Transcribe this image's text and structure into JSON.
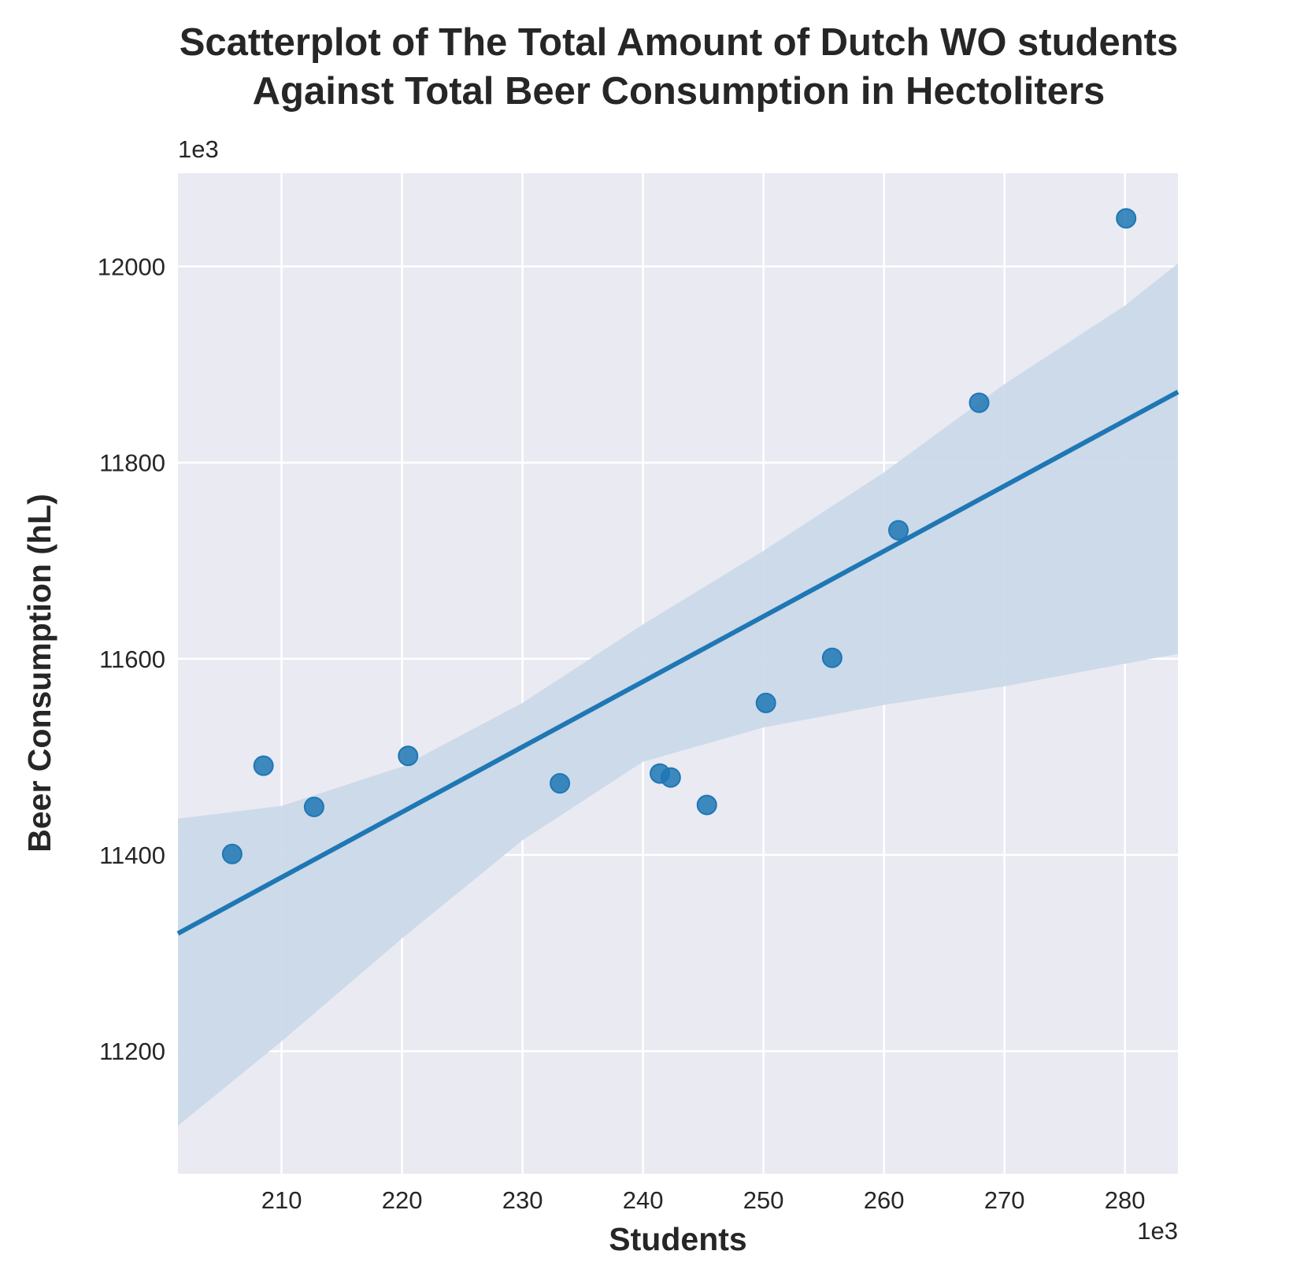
{
  "chart_data": {
    "type": "scatter",
    "title_lines": [
      "Scatterplot of The Total Amount of Dutch WO students",
      "Against Total Beer Consumption in Hectoliters"
    ],
    "xlabel": "Students",
    "ylabel": "Beer Consumption (hL)",
    "x_offset_text": "1e3",
    "y_offset_text": "1e3",
    "xlim": [
      201.4,
      284.4
    ],
    "ylim": [
      11075,
      12095
    ],
    "x_ticks": [
      210,
      220,
      230,
      240,
      250,
      260,
      270,
      280
    ],
    "y_ticks": [
      11200,
      11400,
      11600,
      11800,
      12000
    ],
    "grid": true,
    "colors": {
      "background": "#eaeaf2",
      "points": "#1f77b4",
      "line": "#1f77b4",
      "band": "#c9d8e8"
    },
    "series": [
      {
        "x": [
          205.9,
          208.5,
          212.7,
          220.5,
          233.1,
          241.4,
          242.3,
          245.3,
          250.2,
          255.7,
          261.2,
          267.9,
          280.1
        ],
        "y": [
          11401,
          11491,
          11449,
          11501,
          11473,
          11483,
          11479,
          11451,
          11555,
          11601,
          11731,
          11861,
          12049
        ]
      }
    ],
    "regression": {
      "x": [
        201.4,
        284.4
      ],
      "y": [
        11320,
        11872
      ]
    },
    "confidence_band": {
      "x": [
        201.4,
        210,
        220,
        230,
        240,
        250,
        260,
        270,
        280,
        284.4
      ],
      "upper": [
        11437,
        11450,
        11490,
        11555,
        11635,
        11710,
        11790,
        11880,
        11960,
        12003
      ],
      "lower": [
        11124,
        11210,
        11315,
        11415,
        11495,
        11530,
        11553,
        11572,
        11595,
        11605
      ]
    }
  }
}
